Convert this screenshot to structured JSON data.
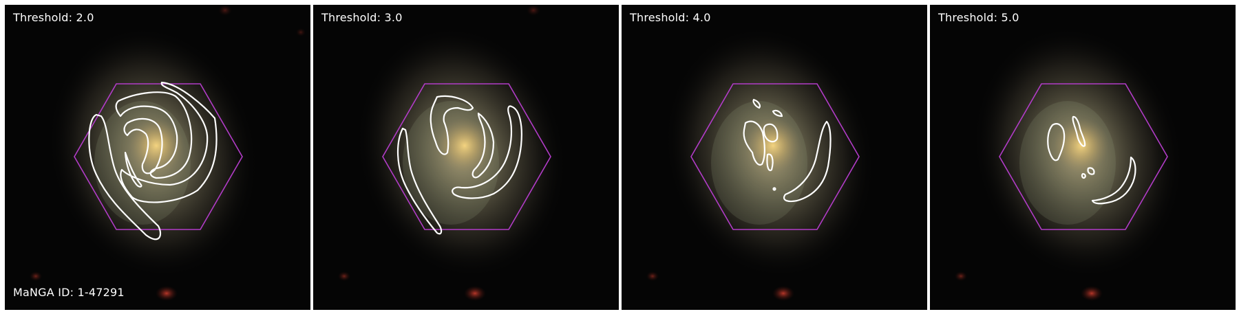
{
  "panels": [
    {
      "label": "Threshold: 2.0"
    },
    {
      "label": "Threshold: 3.0"
    },
    {
      "label": "Threshold: 4.0"
    },
    {
      "label": "Threshold: 5.0"
    }
  ],
  "galaxy_id": "MaNGA ID: 1-47291",
  "colors": {
    "hexagon": "#b23cc8",
    "contour": "#ffffff",
    "background": "#050505"
  }
}
